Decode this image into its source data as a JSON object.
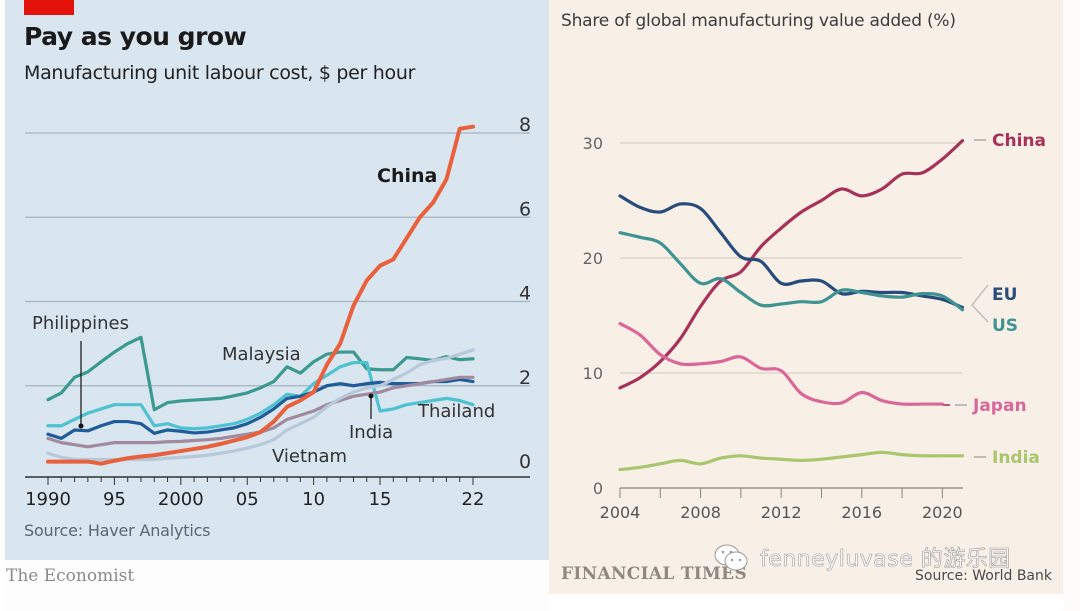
{
  "left_chart": {
    "title": "Pay as you grow",
    "subtitle": "Manufacturing unit labour cost, $ per hour",
    "source": "Source: Haver Analytics",
    "brand": "The Economist",
    "brand_color": "#e3120b"
  },
  "right_chart": {
    "title": "Share of global manufacturing value added (%)",
    "brand": "FINANCIAL TIMES",
    "source": "Source: World Bank"
  },
  "watermark": {
    "text": "fenneyluvase 的游乐园",
    "icon": "wechat-icon"
  },
  "chart_data": [
    {
      "type": "line",
      "title": "Pay as you grow",
      "subtitle": "Manufacturing unit labour cost, $ per hour",
      "xlabel": "",
      "ylabel": "$ per hour",
      "xlim": [
        1990,
        2022
      ],
      "ylim": [
        0,
        8
      ],
      "grid": true,
      "y_axis_side": "right",
      "x_ticks": [
        1990,
        1995,
        2000,
        2005,
        2010,
        2015,
        2022
      ],
      "x_tick_labels": [
        "1990",
        "95",
        "2000",
        "05",
        "10",
        "15",
        "22"
      ],
      "y_ticks": [
        0,
        2,
        4,
        6,
        8
      ],
      "y_tick_labels": [
        "0",
        "2",
        "4",
        "6",
        "8"
      ],
      "source": "Source: Haver Analytics",
      "series": [
        {
          "name": "Malaysia",
          "label": "Malaysia",
          "color": "#3a9a8f",
          "x": [
            1990,
            1991,
            1992,
            1993,
            1994,
            1995,
            1996,
            1997,
            1998,
            1999,
            2000,
            2001,
            2002,
            2003,
            2004,
            2005,
            2006,
            2007,
            2008,
            2009,
            2010,
            2011,
            2012,
            2013,
            2014,
            2015,
            2016,
            2017,
            2018,
            2019,
            2020,
            2021,
            2022
          ],
          "values": [
            1.67,
            1.83,
            2.2,
            2.33,
            2.57,
            2.8,
            3.0,
            3.15,
            1.43,
            1.6,
            1.64,
            1.66,
            1.68,
            1.7,
            1.76,
            1.83,
            1.95,
            2.1,
            2.45,
            2.3,
            2.57,
            2.75,
            2.8,
            2.8,
            2.4,
            2.38,
            2.38,
            2.67,
            2.64,
            2.6,
            2.69,
            2.62,
            2.64
          ]
        },
        {
          "name": "Thailand",
          "label": "Thailand",
          "color": "#4fc2d2",
          "x": [
            1990,
            1991,
            1992,
            1993,
            1994,
            1995,
            1996,
            1997,
            1998,
            1999,
            2000,
            2001,
            2002,
            2003,
            2004,
            2005,
            2006,
            2007,
            2008,
            2009,
            2010,
            2011,
            2012,
            2013,
            2014,
            2015,
            2016,
            2017,
            2018,
            2019,
            2020,
            2021,
            2022
          ],
          "values": [
            1.05,
            1.05,
            1.2,
            1.35,
            1.45,
            1.55,
            1.55,
            1.55,
            1.05,
            1.1,
            1.0,
            0.98,
            1.0,
            1.05,
            1.1,
            1.2,
            1.35,
            1.55,
            1.8,
            1.75,
            2.05,
            2.25,
            2.45,
            2.55,
            2.55,
            1.4,
            1.45,
            1.55,
            1.6,
            1.65,
            1.7,
            1.65,
            1.55
          ]
        },
        {
          "name": "Philippines",
          "label": "Philippines",
          "color": "#1f5c99",
          "x": [
            1990,
            1991,
            1992,
            1993,
            1994,
            1995,
            1996,
            1997,
            1998,
            1999,
            2000,
            2001,
            2002,
            2003,
            2004,
            2005,
            2006,
            2007,
            2008,
            2009,
            2010,
            2011,
            2012,
            2013,
            2014,
            2015,
            2016,
            2017,
            2018,
            2019,
            2020,
            2021,
            2022
          ],
          "values": [
            0.85,
            0.75,
            0.95,
            0.93,
            1.05,
            1.15,
            1.15,
            1.1,
            0.87,
            0.95,
            0.92,
            0.88,
            0.9,
            0.95,
            1.0,
            1.1,
            1.25,
            1.45,
            1.7,
            1.75,
            1.85,
            2.0,
            2.05,
            2.0,
            2.05,
            2.08,
            2.05,
            2.05,
            2.05,
            2.1,
            2.1,
            2.15,
            2.1
          ]
        },
        {
          "name": "India",
          "label": "India",
          "color": "#a08a9e",
          "x": [
            1990,
            1991,
            1992,
            1993,
            1994,
            1995,
            1996,
            1997,
            1998,
            1999,
            2000,
            2001,
            2002,
            2003,
            2004,
            2005,
            2006,
            2007,
            2008,
            2009,
            2010,
            2011,
            2012,
            2013,
            2014,
            2015,
            2016,
            2017,
            2018,
            2019,
            2020,
            2021,
            2022
          ],
          "values": [
            0.75,
            0.65,
            0.6,
            0.55,
            0.6,
            0.65,
            0.65,
            0.65,
            0.65,
            0.67,
            0.68,
            0.7,
            0.72,
            0.75,
            0.8,
            0.85,
            0.9,
            1.0,
            1.2,
            1.3,
            1.4,
            1.55,
            1.65,
            1.75,
            1.8,
            1.85,
            1.95,
            2.0,
            2.05,
            2.1,
            2.15,
            2.2,
            2.2
          ]
        },
        {
          "name": "Vietnam",
          "label": "Vietnam",
          "color": "#b7c8da",
          "x": [
            1990,
            1991,
            1992,
            1993,
            1994,
            1995,
            1996,
            1997,
            1998,
            1999,
            2000,
            2001,
            2002,
            2003,
            2004,
            2005,
            2006,
            2007,
            2008,
            2009,
            2010,
            2011,
            2012,
            2013,
            2014,
            2015,
            2016,
            2017,
            2018,
            2019,
            2020,
            2021,
            2022
          ],
          "values": [
            0.4,
            0.3,
            0.25,
            0.25,
            0.25,
            0.25,
            0.25,
            0.25,
            0.25,
            0.28,
            0.3,
            0.32,
            0.35,
            0.4,
            0.45,
            0.52,
            0.6,
            0.72,
            0.95,
            1.1,
            1.25,
            1.5,
            1.7,
            1.85,
            1.95,
            2.0,
            2.15,
            2.3,
            2.5,
            2.6,
            2.65,
            2.75,
            2.85
          ]
        },
        {
          "name": "China",
          "label": "China",
          "color": "#e8613c",
          "x": [
            1990,
            1991,
            1992,
            1993,
            1994,
            1995,
            1996,
            1997,
            1998,
            1999,
            2000,
            2001,
            2002,
            2003,
            2004,
            2005,
            2006,
            2007,
            2008,
            2009,
            2010,
            2011,
            2012,
            2013,
            2014,
            2015,
            2016,
            2017,
            2018,
            2019,
            2020,
            2021,
            2022
          ],
          "values": [
            0.2,
            0.2,
            0.2,
            0.2,
            0.15,
            0.22,
            0.28,
            0.32,
            0.35,
            0.4,
            0.45,
            0.5,
            0.55,
            0.62,
            0.7,
            0.78,
            0.9,
            1.15,
            1.5,
            1.65,
            1.85,
            2.5,
            3.0,
            3.9,
            4.5,
            4.85,
            5.0,
            5.5,
            6.0,
            6.35,
            6.9,
            8.1,
            8.15
          ]
        }
      ],
      "annotations": [
        {
          "text": "China",
          "target": "China",
          "style": "bold"
        },
        {
          "text": "Philippines",
          "target": "Philippines",
          "pointer_year": 1993
        },
        {
          "text": "India",
          "target": "India",
          "pointer_year": 2014
        },
        {
          "text": "Malaysia",
          "target": "Malaysia"
        },
        {
          "text": "Thailand",
          "target": "Thailand"
        },
        {
          "text": "Vietnam",
          "target": "Vietnam"
        }
      ]
    },
    {
      "type": "line",
      "title": "Share of global manufacturing value added (%)",
      "xlabel": "",
      "ylabel": "%",
      "xlim": [
        2004,
        2021
      ],
      "ylim": [
        0,
        30
      ],
      "grid": true,
      "y_axis_side": "left",
      "x_ticks": [
        2004,
        2008,
        2012,
        2016,
        2020
      ],
      "x_tick_labels": [
        "2004",
        "2008",
        "2012",
        "2016",
        "2020"
      ],
      "y_ticks": [
        0,
        10,
        20,
        30
      ],
      "y_tick_labels": [
        "0",
        "10",
        "20",
        "30"
      ],
      "source": "Source: World Bank",
      "legend_placement": "right",
      "series": [
        {
          "name": "China",
          "color": "#a6325a",
          "x": [
            2004,
            2005,
            2006,
            2007,
            2008,
            2009,
            2010,
            2011,
            2012,
            2013,
            2014,
            2015,
            2016,
            2017,
            2018,
            2019,
            2020,
            2021
          ],
          "values": [
            8.7,
            9.6,
            11.0,
            13.0,
            15.8,
            18.0,
            18.8,
            21.0,
            22.6,
            24.0,
            25.0,
            26.0,
            25.4,
            26.0,
            27.3,
            27.4,
            28.6,
            30.2
          ]
        },
        {
          "name": "EU",
          "color": "#274b7a",
          "x": [
            2004,
            2005,
            2006,
            2007,
            2008,
            2009,
            2010,
            2011,
            2012,
            2013,
            2014,
            2015,
            2016,
            2017,
            2018,
            2019,
            2020,
            2021
          ],
          "values": [
            25.4,
            24.4,
            24.0,
            24.7,
            24.3,
            22.2,
            20.1,
            19.7,
            17.8,
            18.0,
            18.0,
            16.9,
            17.1,
            17.0,
            17.0,
            16.7,
            16.4,
            15.7
          ]
        },
        {
          "name": "US",
          "color": "#3f9493",
          "x": [
            2004,
            2005,
            2006,
            2007,
            2008,
            2009,
            2010,
            2011,
            2012,
            2013,
            2014,
            2015,
            2016,
            2017,
            2018,
            2019,
            2020,
            2021
          ],
          "values": [
            22.2,
            21.8,
            21.3,
            19.5,
            17.8,
            18.2,
            17.0,
            15.9,
            16.0,
            16.2,
            16.2,
            17.2,
            17.0,
            16.7,
            16.6,
            16.9,
            16.7,
            15.5
          ]
        },
        {
          "name": "Japan",
          "color": "#d9679a",
          "x": [
            2004,
            2005,
            2006,
            2007,
            2008,
            2009,
            2010,
            2011,
            2012,
            2013,
            2014,
            2015,
            2016,
            2017,
            2018,
            2019,
            2020
          ],
          "values": [
            14.3,
            13.3,
            11.6,
            10.8,
            10.8,
            11.0,
            11.4,
            10.4,
            10.2,
            8.2,
            7.5,
            7.4,
            8.3,
            7.6,
            7.3,
            7.3,
            7.3
          ]
        },
        {
          "name": "India",
          "color": "#a9c66e",
          "x": [
            2004,
            2005,
            2006,
            2007,
            2008,
            2009,
            2010,
            2011,
            2012,
            2013,
            2014,
            2015,
            2016,
            2017,
            2018,
            2019,
            2020,
            2021
          ],
          "values": [
            1.6,
            1.8,
            2.1,
            2.4,
            2.1,
            2.6,
            2.8,
            2.6,
            2.5,
            2.4,
            2.5,
            2.7,
            2.9,
            3.1,
            2.9,
            2.8,
            2.8,
            2.8
          ]
        }
      ]
    }
  ]
}
